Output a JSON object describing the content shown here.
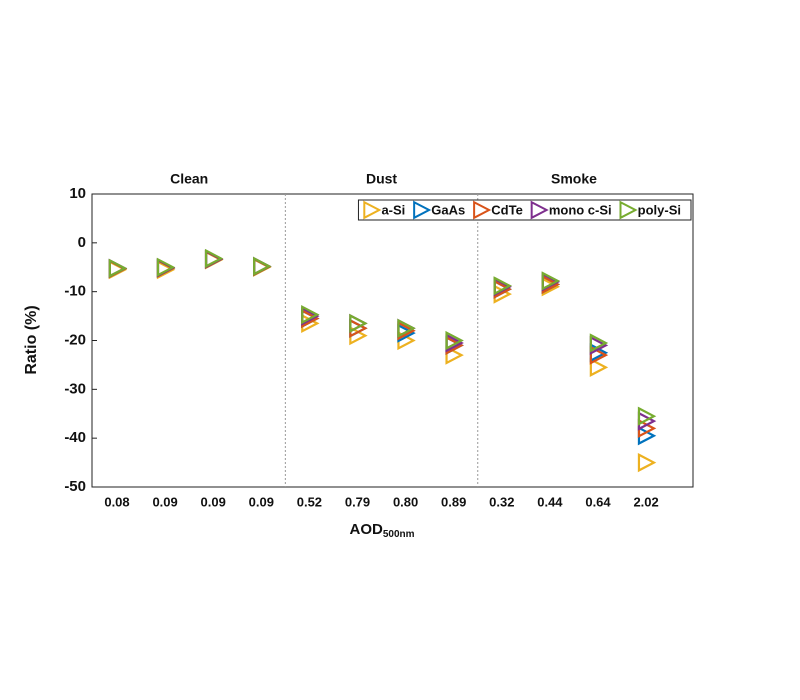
{
  "chart_data": {
    "type": "scatter",
    "y_label": "Ratio (%)",
    "x_label": {
      "text": "AOD",
      "subscript": "500nm"
    },
    "groups": [
      "Clean",
      "Dust",
      "Smoke"
    ],
    "categories": [
      "0.08",
      "0.09",
      "0.09",
      "0.09",
      "0.52",
      "0.79",
      "0.80",
      "0.89",
      "0.32",
      "0.44",
      "0.64",
      "2.02"
    ],
    "ylim": [
      -50,
      10
    ],
    "yticks": [
      10,
      0,
      -10,
      -20,
      -30,
      -40,
      -50
    ],
    "series": [
      {
        "name": "a-Si",
        "color": "#EDB120",
        "values": [
          -5.5,
          -5.5,
          -3.5,
          -5,
          -16.5,
          -19,
          -20,
          -23,
          -10.5,
          -9,
          -25.5,
          -45
        ]
      },
      {
        "name": "GaAs",
        "color": "#0072BD",
        "values": [
          -5.3,
          -5.2,
          -3.4,
          -4.9,
          -15.5,
          -17.5,
          -18.5,
          -21,
          -9.5,
          -8.5,
          -22.5,
          -39.5
        ]
      },
      {
        "name": "CdTe",
        "color": "#D95319",
        "values": [
          -5.3,
          -5.2,
          -3.4,
          -4.9,
          -15.5,
          -17.5,
          -18,
          -21,
          -9.5,
          -8.5,
          -23,
          -38
        ]
      },
      {
        "name": "mono c-Si",
        "color": "#7E2F8E",
        "values": [
          -5.2,
          -5.1,
          -3.3,
          -4.8,
          -15,
          -16.5,
          -17.5,
          -20.5,
          -9,
          -8,
          -21,
          -36.5
        ]
      },
      {
        "name": "poly-Si",
        "color": "#77AC30",
        "values": [
          -5.2,
          -5,
          -3.2,
          -4.8,
          -14.7,
          -16.5,
          -17.5,
          -20,
          -8.8,
          -7.8,
          -20.5,
          -35.5
        ]
      }
    ],
    "legend": "upper right"
  }
}
